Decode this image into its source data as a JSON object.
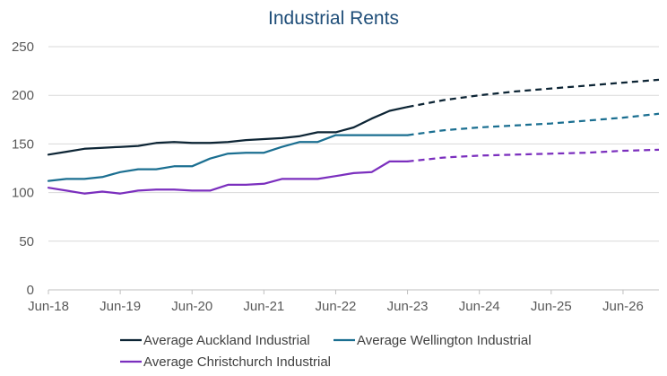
{
  "chart_data": {
    "type": "line",
    "title": "Industrial Rents",
    "xlabel": "",
    "ylabel": "",
    "ylim": [
      0,
      250
    ],
    "yticks": [
      0,
      50,
      100,
      150,
      200,
      250
    ],
    "xlim": [
      "2018-06",
      "2026-12"
    ],
    "xticks": [
      "Jun-18",
      "Jun-19",
      "Jun-20",
      "Jun-21",
      "Jun-22",
      "Jun-23",
      "Jun-24",
      "Jun-25",
      "Jun-26"
    ],
    "grid": "horizontal",
    "legend": "bottom",
    "series": [
      {
        "name": "Average Auckland Industrial",
        "color": "#0D2535",
        "actual": [
          [
            "2018-06",
            139
          ],
          [
            "2018-09",
            142
          ],
          [
            "2018-12",
            145
          ],
          [
            "2019-03",
            146
          ],
          [
            "2019-06",
            147
          ],
          [
            "2019-09",
            148
          ],
          [
            "2019-12",
            151
          ],
          [
            "2020-03",
            152
          ],
          [
            "2020-06",
            151
          ],
          [
            "2020-09",
            151
          ],
          [
            "2020-12",
            152
          ],
          [
            "2021-03",
            154
          ],
          [
            "2021-06",
            155
          ],
          [
            "2021-09",
            156
          ],
          [
            "2021-12",
            158
          ],
          [
            "2022-03",
            162
          ],
          [
            "2022-06",
            162
          ],
          [
            "2022-09",
            167
          ],
          [
            "2022-12",
            176
          ],
          [
            "2023-03",
            184
          ],
          [
            "2023-06",
            188
          ]
        ],
        "forecast": [
          [
            "2023-06",
            188
          ],
          [
            "2023-12",
            195
          ],
          [
            "2024-06",
            200
          ],
          [
            "2024-12",
            204
          ],
          [
            "2025-06",
            207
          ],
          [
            "2025-12",
            210
          ],
          [
            "2026-06",
            213
          ],
          [
            "2026-12",
            216
          ]
        ]
      },
      {
        "name": "Average Wellington Industrial",
        "color": "#1B6F91",
        "actual": [
          [
            "2018-06",
            112
          ],
          [
            "2018-09",
            114
          ],
          [
            "2018-12",
            114
          ],
          [
            "2019-03",
            116
          ],
          [
            "2019-06",
            121
          ],
          [
            "2019-09",
            124
          ],
          [
            "2019-12",
            124
          ],
          [
            "2020-03",
            127
          ],
          [
            "2020-06",
            127
          ],
          [
            "2020-09",
            135
          ],
          [
            "2020-12",
            140
          ],
          [
            "2021-03",
            141
          ],
          [
            "2021-06",
            141
          ],
          [
            "2021-09",
            147
          ],
          [
            "2021-12",
            152
          ],
          [
            "2022-03",
            152
          ],
          [
            "2022-06",
            159
          ],
          [
            "2022-09",
            159
          ],
          [
            "2022-12",
            159
          ],
          [
            "2023-03",
            159
          ],
          [
            "2023-06",
            159
          ]
        ],
        "forecast": [
          [
            "2023-06",
            159
          ],
          [
            "2023-12",
            164
          ],
          [
            "2024-06",
            167
          ],
          [
            "2024-12",
            169
          ],
          [
            "2025-06",
            171
          ],
          [
            "2025-12",
            174
          ],
          [
            "2026-06",
            177
          ],
          [
            "2026-12",
            181
          ]
        ]
      },
      {
        "name": "Average Christchurch Industrial",
        "color": "#7B2FBE",
        "actual": [
          [
            "2018-06",
            105
          ],
          [
            "2018-09",
            102
          ],
          [
            "2018-12",
            99
          ],
          [
            "2019-03",
            101
          ],
          [
            "2019-06",
            99
          ],
          [
            "2019-09",
            102
          ],
          [
            "2019-12",
            103
          ],
          [
            "2020-03",
            103
          ],
          [
            "2020-06",
            102
          ],
          [
            "2020-09",
            102
          ],
          [
            "2020-12",
            108
          ],
          [
            "2021-03",
            108
          ],
          [
            "2021-06",
            109
          ],
          [
            "2021-09",
            114
          ],
          [
            "2021-12",
            114
          ],
          [
            "2022-03",
            114
          ],
          [
            "2022-06",
            117
          ],
          [
            "2022-09",
            120
          ],
          [
            "2022-12",
            121
          ],
          [
            "2023-03",
            132
          ],
          [
            "2023-06",
            132
          ]
        ],
        "forecast": [
          [
            "2023-06",
            132
          ],
          [
            "2023-12",
            136
          ],
          [
            "2024-06",
            138
          ],
          [
            "2024-12",
            139
          ],
          [
            "2025-06",
            140
          ],
          [
            "2025-12",
            141
          ],
          [
            "2026-06",
            143
          ],
          [
            "2026-12",
            144
          ]
        ]
      }
    ]
  }
}
